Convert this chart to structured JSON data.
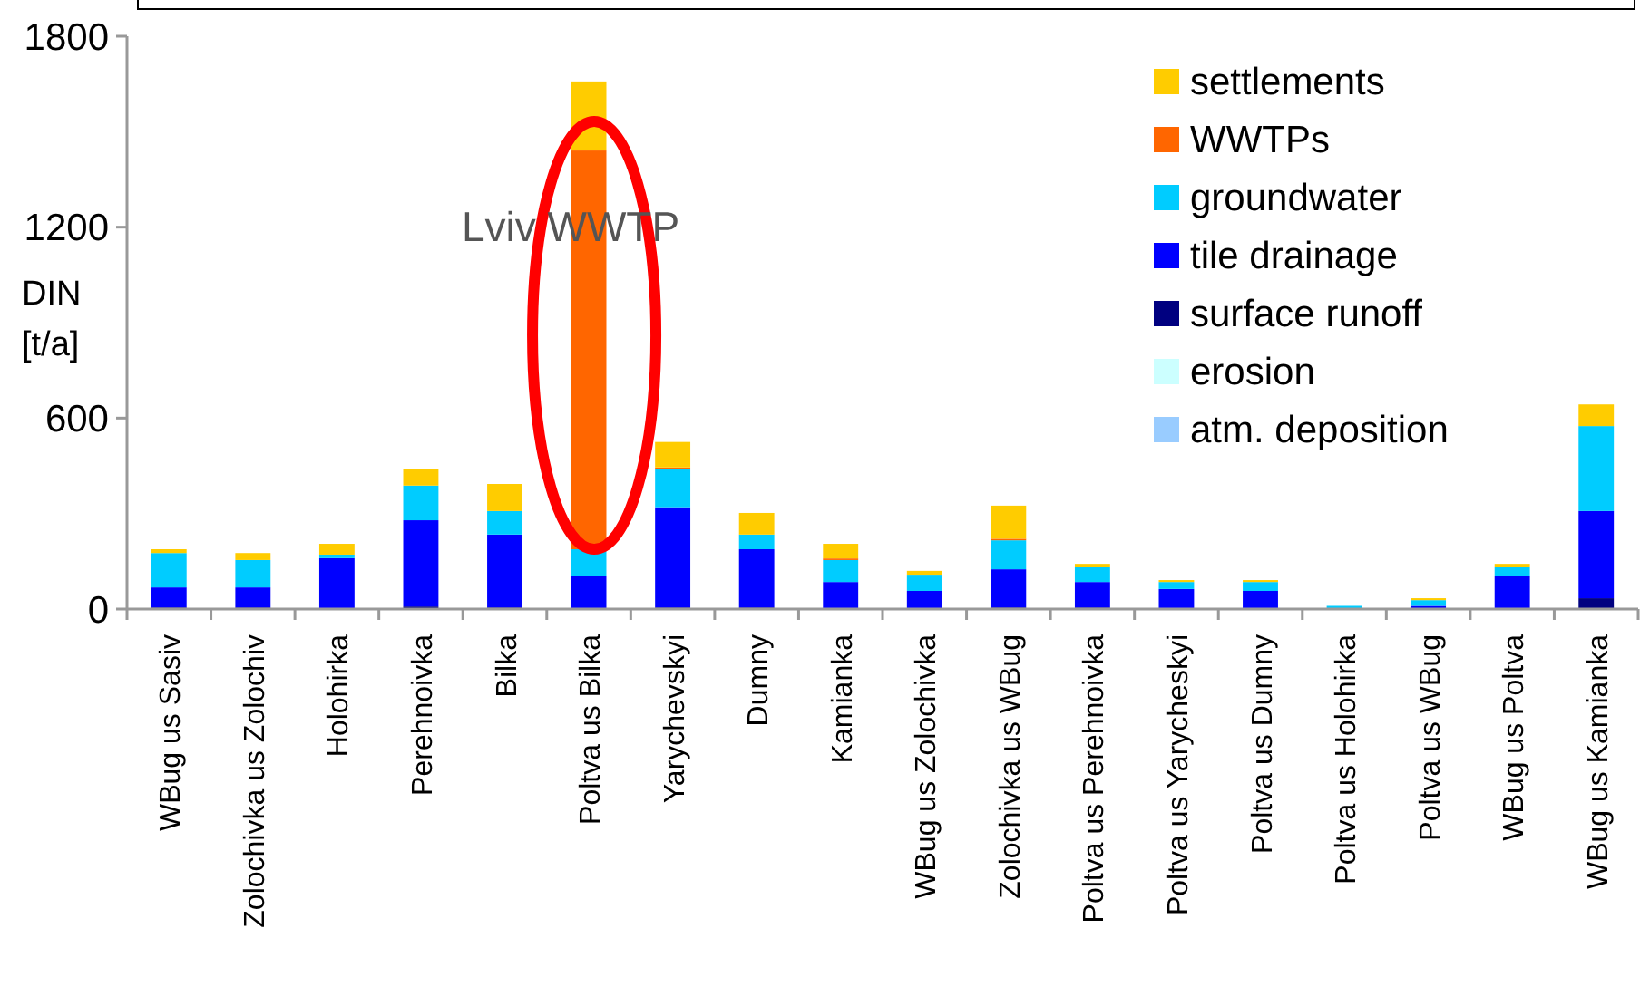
{
  "chart_data": {
    "type": "bar",
    "stacked": true,
    "ylabel": "DIN [t/a]",
    "categories": [
      "WBug us Sasiv",
      "Zolochivka us Zolochiv",
      "Holohirka",
      "Perehnoivka",
      "Bilka",
      "Poltva us Bilka",
      "Yarychevskyi",
      "Dumny",
      "Kamianka",
      "WBug us Zolochivka",
      "Zolochivka us WBug",
      "Poltva us Perehnoivka",
      "Poltva us Yarycheskyi",
      "Poltva us Dumny",
      "Poltva us Holohirka",
      "Poltva us WBug",
      "WBug us Poltva",
      "WBug us Kamianka"
    ],
    "series": [
      {
        "name": "atm. deposition",
        "color": "#99ccff",
        "values": [
          0,
          0,
          0,
          0,
          0,
          0,
          0,
          0,
          0,
          0,
          0,
          0,
          0,
          0,
          0,
          0,
          0,
          0
        ]
      },
      {
        "name": "erosion",
        "color": "#ccffff",
        "values": [
          0,
          0,
          0,
          0,
          0,
          0,
          0,
          0,
          0,
          0,
          0,
          0,
          0,
          0,
          0,
          0,
          0,
          0
        ]
      },
      {
        "name": "surface runoff",
        "color": "#000080",
        "values": [
          5,
          5,
          0,
          8,
          5,
          0,
          5,
          5,
          0,
          0,
          5,
          5,
          0,
          0,
          0,
          0,
          0,
          34
        ]
      },
      {
        "name": "tile drainage",
        "color": "#0000ff",
        "values": [
          63,
          63,
          160,
          271,
          229,
          103,
          315,
          183,
          85,
          57,
          120,
          80,
          63,
          57,
          0,
          10,
          103,
          274
        ]
      },
      {
        "name": "groundwater",
        "color": "#00ccff",
        "values": [
          108,
          86,
          11,
          109,
          74,
          85,
          120,
          46,
          69,
          51,
          91,
          46,
          22,
          28,
          10,
          18,
          28,
          267
        ]
      },
      {
        "name": "WWTPs",
        "color": "#ff6600",
        "values": [
          0,
          0,
          0,
          0,
          0,
          1253,
          5,
          0,
          5,
          0,
          5,
          0,
          0,
          0,
          0,
          0,
          0,
          0
        ]
      },
      {
        "name": "settlements",
        "color": "#ffcc00",
        "values": [
          12,
          22,
          34,
          51,
          85,
          217,
          80,
          68,
          46,
          12,
          104,
          11,
          6,
          6,
          0,
          6,
          11,
          68
        ]
      }
    ],
    "ylim": [
      0,
      1800
    ],
    "yticks": [
      0,
      600,
      1200,
      1800
    ],
    "grid": false,
    "legend": "top right",
    "annotations": [
      "Lviv WWTP"
    ]
  }
}
